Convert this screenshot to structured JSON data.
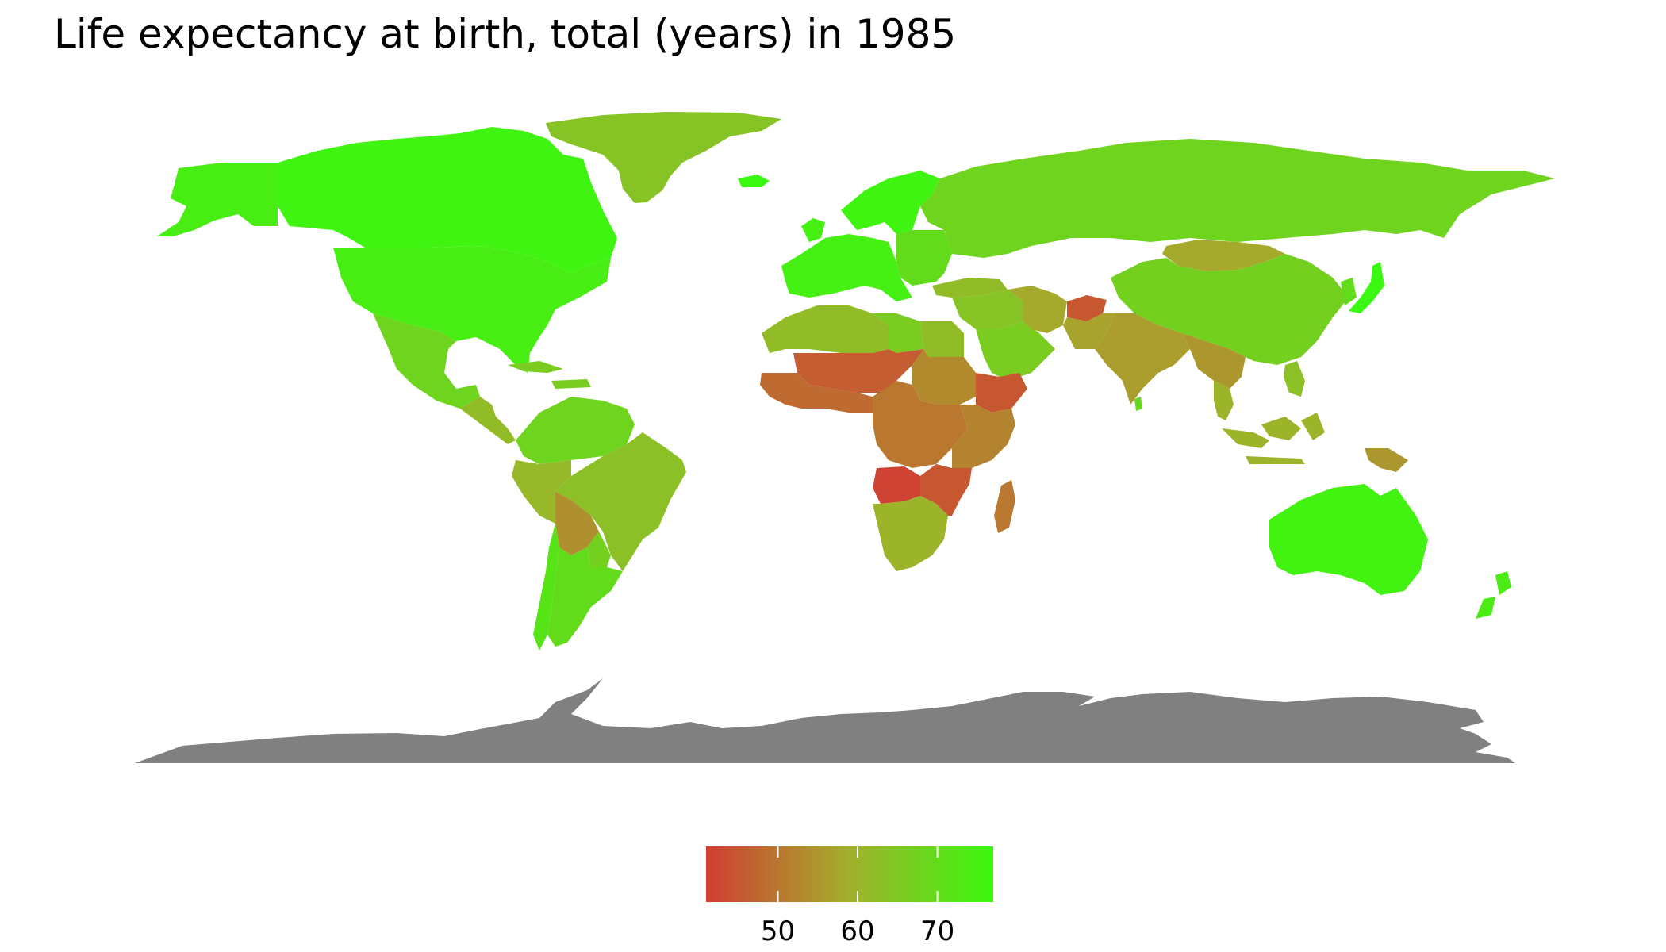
{
  "title": "Life expectancy at birth, total (years) in 1985",
  "map": {
    "projection": "equirectangular",
    "background": "#ffffff",
    "no_data_color": "#808080",
    "color_scale": {
      "min_value": 41,
      "max_value": 77,
      "low_color": "#d13d33",
      "mid_color": "#a2b02c",
      "high_color": "#3af80f"
    },
    "regions": [
      {
        "name": "Canada",
        "value": 76
      },
      {
        "name": "United States",
        "value": 74.6
      },
      {
        "name": "Greenland",
        "value": 64
      },
      {
        "name": "Alaska",
        "value": 74.6
      },
      {
        "name": "Mexico",
        "value": 68
      },
      {
        "name": "Central America",
        "value": 62
      },
      {
        "name": "Caribbean",
        "value": 66
      },
      {
        "name": "South America north",
        "value": 68
      },
      {
        "name": "Brazil",
        "value": 63
      },
      {
        "name": "Peru",
        "value": 61
      },
      {
        "name": "Bolivia",
        "value": 54
      },
      {
        "name": "Paraguay",
        "value": 67
      },
      {
        "name": "Argentina",
        "value": 70
      },
      {
        "name": "Chile",
        "value": 72
      },
      {
        "name": "Western Europe",
        "value": 75
      },
      {
        "name": "Scandinavia",
        "value": 76
      },
      {
        "name": "Iceland",
        "value": 77
      },
      {
        "name": "Eastern Europe",
        "value": 70
      },
      {
        "name": "Russia",
        "value": 68
      },
      {
        "name": "Mongolia",
        "value": 58
      },
      {
        "name": "China",
        "value": 67
      },
      {
        "name": "Japan",
        "value": 77.6
      },
      {
        "name": "Korea",
        "value": 70
      },
      {
        "name": "Turkey",
        "value": 62
      },
      {
        "name": "Middle East",
        "value": 64
      },
      {
        "name": "Arabian Peninsula",
        "value": 66
      },
      {
        "name": "Iran",
        "value": 58
      },
      {
        "name": "Afghanistan",
        "value": 45
      },
      {
        "name": "Pakistan",
        "value": 57
      },
      {
        "name": "India",
        "value": 56
      },
      {
        "name": "Sri Lanka",
        "value": 69
      },
      {
        "name": "Southeast Asia",
        "value": 60
      },
      {
        "name": "Indochina",
        "value": 55
      },
      {
        "name": "Philippines",
        "value": 63
      },
      {
        "name": "Indonesia",
        "value": 60
      },
      {
        "name": "Papua New Guinea",
        "value": 55
      },
      {
        "name": "Australia",
        "value": 75.6
      },
      {
        "name": "New Zealand",
        "value": 74
      },
      {
        "name": "North Africa",
        "value": 62
      },
      {
        "name": "Egypt",
        "value": 62
      },
      {
        "name": "Libya",
        "value": 66
      },
      {
        "name": "Sahel",
        "value": 46
      },
      {
        "name": "West Africa",
        "value": 48
      },
      {
        "name": "Sudan",
        "value": 53
      },
      {
        "name": "Ethiopia",
        "value": 45
      },
      {
        "name": "East Africa",
        "value": 52
      },
      {
        "name": "Central Africa",
        "value": 50
      },
      {
        "name": "Angola",
        "value": 42
      },
      {
        "name": "Southern Africa",
        "value": 60
      },
      {
        "name": "Mozambique",
        "value": 45
      },
      {
        "name": "Madagascar",
        "value": 50
      },
      {
        "name": "Antarctica",
        "value": null
      }
    ]
  },
  "legend": {
    "ticks": [
      {
        "value": 50,
        "label": "50"
      },
      {
        "value": 60,
        "label": "60"
      },
      {
        "value": 70,
        "label": "70"
      }
    ]
  }
}
